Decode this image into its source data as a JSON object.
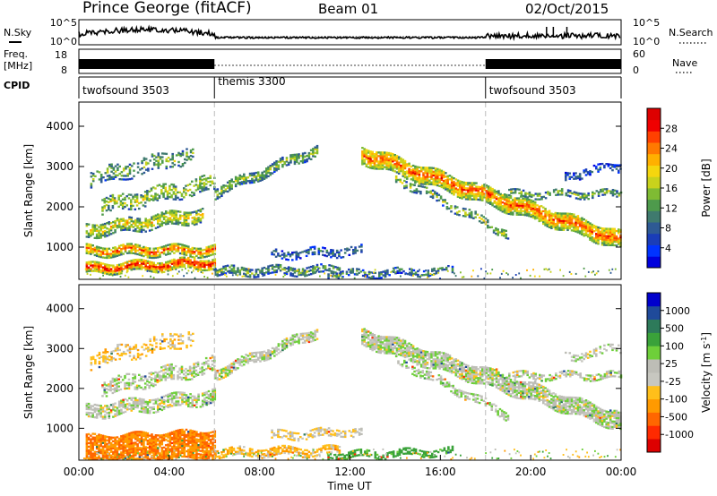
{
  "header": {
    "title": "Prince George (fitACF)",
    "beam": "Beam 01",
    "date": "02/Oct/2015"
  },
  "noise_panel": {
    "left_label": "N.Sky",
    "left_ticks": [
      "10^5",
      "10^0"
    ],
    "right_ticks": [
      "10^5",
      "10^0"
    ],
    "right_label": "N.Search"
  },
  "freq_panel": {
    "left_label_top": "Freq.",
    "left_label_bottom": "[MHz]",
    "left_ticks": [
      "18",
      "8"
    ],
    "right_ticks": [
      "60",
      "0"
    ],
    "right_label": "Nave"
  },
  "cpid_panel": {
    "label": "CPID",
    "segments": [
      {
        "name": "twofsound 3503",
        "start_hour": 0,
        "end_hour": 6
      },
      {
        "name": "themis 3300",
        "start_hour": 6,
        "end_hour": 18
      },
      {
        "name": "twofsound 3503",
        "start_hour": 18,
        "end_hour": 24
      }
    ]
  },
  "power_colorbar": {
    "label": "Power [dB]",
    "ticks": [
      "28",
      "24",
      "20",
      "16",
      "12",
      "8",
      "4"
    ],
    "colors": [
      "#0000dd",
      "#0033ff",
      "#1a3db8",
      "#2e5a94",
      "#3f7a6e",
      "#4e9a4c",
      "#7fbb33",
      "#c8d21c",
      "#f5d60e",
      "#ffb000",
      "#ff7a00",
      "#ff4000",
      "#f00000",
      "#dd0000"
    ]
  },
  "velocity_colorbar": {
    "label_text": "Velocity [m s",
    "label_sup": "-1",
    "label_close": "]",
    "ticks": [
      "1000",
      "500",
      "100",
      "25",
      "-25",
      "-100",
      "-500",
      "-1000"
    ],
    "colors": [
      "#dd0000",
      "#ff2a00",
      "#ff6600",
      "#ff9a00",
      "#ffbf1a",
      "#c7c7c0",
      "#bdbdb6",
      "#6ecf3a",
      "#3aa23a",
      "#2d7a5a",
      "#1f4a9a",
      "#0000cc"
    ]
  },
  "chart_data": [
    {
      "type": "heatmap",
      "name": "power",
      "ylabel": "Slant Range [km]",
      "xlim_hours": [
        0,
        24
      ],
      "ylim_km": [
        200,
        4600
      ],
      "yticks": [
        1000,
        2000,
        3000,
        4000
      ],
      "color_scale": [
        0,
        30
      ],
      "echo_bands": [
        {
          "t0": 0.3,
          "t1": 6.0,
          "r0_start": 450,
          "r0_end": 600,
          "width": 250,
          "value": 25,
          "density": 0.85
        },
        {
          "t0": 0.3,
          "t1": 6.0,
          "r0_start": 900,
          "r0_end": 900,
          "width": 250,
          "value": 22,
          "density": 0.8
        },
        {
          "t0": 0.3,
          "t1": 5.5,
          "r0_start": 1400,
          "r0_end": 1800,
          "width": 350,
          "value": 17,
          "density": 0.7
        },
        {
          "t0": 1.0,
          "t1": 6.0,
          "r0_start": 2000,
          "r0_end": 2600,
          "width": 400,
          "value": 15,
          "density": 0.5
        },
        {
          "t0": 0.5,
          "t1": 5.0,
          "r0_start": 2700,
          "r0_end": 3300,
          "width": 400,
          "value": 13,
          "density": 0.35
        },
        {
          "t0": 6.0,
          "t1": 10.5,
          "r0_start": 2350,
          "r0_end": 3400,
          "width": 250,
          "value": 14,
          "density": 0.7
        },
        {
          "t0": 6.0,
          "t1": 11.5,
          "r0_start": 380,
          "r0_end": 420,
          "width": 200,
          "value": 12,
          "density": 0.6
        },
        {
          "t0": 8.5,
          "t1": 12.5,
          "r0_start": 800,
          "r0_end": 900,
          "width": 200,
          "value": 8,
          "density": 0.5
        },
        {
          "t0": 11.0,
          "t1": 16.5,
          "r0_start": 300,
          "r0_end": 400,
          "width": 150,
          "value": 10,
          "density": 0.55
        },
        {
          "t0": 12.5,
          "t1": 24.0,
          "r0_start": 3300,
          "r0_end": 1150,
          "width": 450,
          "value": 22,
          "density": 0.85
        },
        {
          "t0": 14.0,
          "t1": 19.0,
          "r0_start": 2700,
          "r0_end": 1300,
          "width": 200,
          "value": 15,
          "density": 0.5
        },
        {
          "t0": 19.0,
          "t1": 24.0,
          "r0_start": 2300,
          "r0_end": 2300,
          "width": 150,
          "value": 14,
          "density": 0.55
        },
        {
          "t0": 21.5,
          "t1": 24.0,
          "r0_start": 2750,
          "r0_end": 3000,
          "width": 200,
          "value": 7,
          "density": 0.4
        }
      ],
      "xticks": [
        "00:00",
        "04:00",
        "08:00",
        "12:00",
        "16:00",
        "20:00",
        "00:00"
      ],
      "xlabel": "Time UT"
    },
    {
      "type": "heatmap",
      "name": "velocity",
      "ylabel": "Slant Range [km]",
      "xlim_hours": [
        0,
        24
      ],
      "ylim_km": [
        200,
        4600
      ],
      "yticks": [
        1000,
        2000,
        3000,
        4000
      ],
      "color_scale": [
        -1200,
        1200
      ],
      "echo_bands": [
        {
          "t0": 0.3,
          "t1": 6.0,
          "r0_start": 450,
          "r0_end": 600,
          "width": 700,
          "value": -250,
          "density": 0.85
        },
        {
          "t0": 0.3,
          "t1": 6.0,
          "r0_start": 1400,
          "r0_end": 1800,
          "width": 350,
          "value": 0,
          "density": 0.7
        },
        {
          "t0": 1.0,
          "t1": 6.0,
          "r0_start": 2000,
          "r0_end": 2600,
          "width": 400,
          "value": 0,
          "density": 0.5
        },
        {
          "t0": 0.5,
          "t1": 5.0,
          "r0_start": 2700,
          "r0_end": 3300,
          "width": 400,
          "value": -60,
          "density": 0.35
        },
        {
          "t0": 6.0,
          "t1": 10.5,
          "r0_start": 2350,
          "r0_end": 3400,
          "width": 250,
          "value": 0,
          "density": 0.7
        },
        {
          "t0": 6.0,
          "t1": 11.5,
          "r0_start": 380,
          "r0_end": 420,
          "width": 200,
          "value": -80,
          "density": 0.6
        },
        {
          "t0": 8.5,
          "t1": 12.5,
          "r0_start": 800,
          "r0_end": 900,
          "width": 200,
          "value": -40,
          "density": 0.5
        },
        {
          "t0": 11.0,
          "t1": 16.5,
          "r0_start": 300,
          "r0_end": 400,
          "width": 150,
          "value": 150,
          "density": 0.55
        },
        {
          "t0": 12.5,
          "t1": 24.0,
          "r0_start": 3300,
          "r0_end": 1150,
          "width": 450,
          "value": 0,
          "density": 0.85
        },
        {
          "t0": 14.0,
          "t1": 19.0,
          "r0_start": 2700,
          "r0_end": 1300,
          "width": 200,
          "value": 10,
          "density": 0.5
        },
        {
          "t0": 19.0,
          "t1": 24.0,
          "r0_start": 2300,
          "r0_end": 2300,
          "width": 150,
          "value": 0,
          "density": 0.55
        },
        {
          "t0": 21.5,
          "t1": 24.0,
          "r0_start": 2750,
          "r0_end": 3000,
          "width": 200,
          "value": 0,
          "density": 0.4
        }
      ],
      "xticks": [
        "00:00",
        "04:00",
        "08:00",
        "12:00",
        "16:00",
        "20:00",
        "00:00"
      ],
      "xlabel": "Time UT"
    }
  ]
}
